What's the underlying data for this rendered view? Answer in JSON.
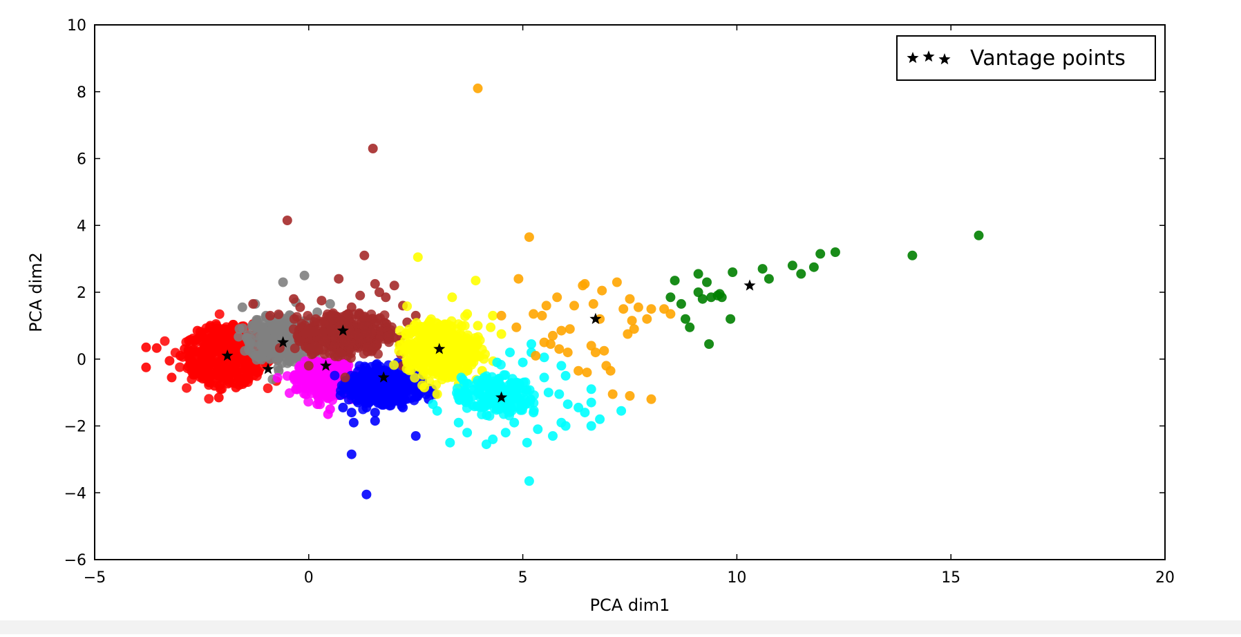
{
  "chart_data": {
    "type": "scatter",
    "title": "",
    "xlabel": "PCA dim1",
    "ylabel": "PCA dim2",
    "xlim": [
      -5,
      20
    ],
    "ylim": [
      -6,
      10
    ],
    "xticks": [
      {
        "value": -5,
        "label": "−5"
      },
      {
        "value": 0,
        "label": "0"
      },
      {
        "value": 5,
        "label": "5"
      },
      {
        "value": 10,
        "label": "10"
      },
      {
        "value": 15,
        "label": "15"
      },
      {
        "value": 20,
        "label": "20"
      }
    ],
    "yticks": [
      {
        "value": -6,
        "label": "−6"
      },
      {
        "value": -4,
        "label": "−4"
      },
      {
        "value": -2,
        "label": "−2"
      },
      {
        "value": 0,
        "label": "0"
      },
      {
        "value": 2,
        "label": "2"
      },
      {
        "value": 4,
        "label": "4"
      },
      {
        "value": 6,
        "label": "6"
      },
      {
        "value": 8,
        "label": "8"
      },
      {
        "value": 10,
        "label": "10"
      }
    ],
    "grid": false,
    "legend": {
      "position": "top-right",
      "entries": [
        "Vantage points"
      ]
    },
    "clusters": [
      {
        "color": "#ff0000",
        "points": [
          [
            -3.8,
            -0.25
          ],
          [
            -3.8,
            0.35
          ],
          [
            -3.55,
            0.33
          ],
          [
            -3.25,
            -0.05
          ],
          [
            -3.2,
            -0.55
          ],
          [
            -3.0,
            0.1
          ],
          [
            -2.8,
            0.55
          ],
          [
            -2.6,
            0.85
          ],
          [
            -2.5,
            -0.4
          ],
          [
            -2.3,
            1.0
          ],
          [
            -2.2,
            -0.8
          ],
          [
            -2.1,
            0.4
          ],
          [
            -1.9,
            -0.2
          ],
          [
            -1.8,
            0.9
          ],
          [
            -1.6,
            0.55
          ],
          [
            -1.5,
            -0.7
          ],
          [
            -1.4,
            0.1
          ],
          [
            -1.3,
            1.05
          ],
          [
            -1.2,
            -0.4
          ],
          [
            -1.05,
            0.3
          ],
          [
            -2.0,
            -0.65
          ],
          [
            -2.7,
            -0.2
          ],
          [
            -1.7,
            -0.85
          ],
          [
            -2.1,
            -1.15
          ],
          [
            -2.4,
            0.15
          ],
          [
            -1.25,
            -0.15
          ],
          [
            -2.9,
            0.3
          ],
          [
            -1.55,
            0.75
          ]
        ],
        "dense": [
          {
            "cx": -1.9,
            "cy": 0.1,
            "rx": 1.05,
            "ry": 0.95,
            "n": 460
          }
        ]
      },
      {
        "color": "#808080",
        "points": [
          [
            -1.55,
            1.55
          ],
          [
            -1.25,
            1.65
          ],
          [
            -1.0,
            1.3
          ],
          [
            -0.6,
            2.3
          ],
          [
            -0.1,
            2.5
          ],
          [
            0.5,
            1.65
          ],
          [
            -0.3,
            1.7
          ],
          [
            -1.3,
            0.9
          ],
          [
            -1.4,
            0.3
          ],
          [
            -0.9,
            0.0
          ],
          [
            -0.7,
            -0.35
          ],
          [
            -0.3,
            0.15
          ],
          [
            0.0,
            1.1
          ],
          [
            0.4,
            0.8
          ],
          [
            -1.2,
            0.5
          ],
          [
            0.2,
            1.4
          ]
        ],
        "dense": [
          {
            "cx": -0.65,
            "cy": 0.6,
            "rx": 0.85,
            "ry": 0.75,
            "n": 340
          }
        ]
      },
      {
        "color": "#ff00ff",
        "points": [
          [
            0.75,
            -0.95
          ],
          [
            0.5,
            -1.5
          ],
          [
            0.2,
            -1.35
          ],
          [
            1.0,
            -1.2
          ],
          [
            -0.3,
            -0.9
          ],
          [
            0.9,
            -0.3
          ],
          [
            -0.2,
            -0.2
          ],
          [
            0.45,
            -1.65
          ],
          [
            1.1,
            -0.6
          ],
          [
            -0.35,
            -0.55
          ]
        ],
        "dense": [
          {
            "cx": 0.4,
            "cy": -0.6,
            "rx": 0.75,
            "ry": 0.6,
            "n": 280
          }
        ]
      },
      {
        "color": "#0000ff",
        "points": [
          [
            1.0,
            -1.6
          ],
          [
            0.8,
            -1.45
          ],
          [
            1.05,
            -1.9
          ],
          [
            1.55,
            -1.6
          ],
          [
            1.55,
            -1.85
          ],
          [
            1.35,
            -1.45
          ],
          [
            1.0,
            -2.85
          ],
          [
            1.35,
            -4.05
          ],
          [
            2.5,
            -2.3
          ],
          [
            2.8,
            -1.2
          ],
          [
            2.95,
            -1.05
          ],
          [
            2.2,
            -1.45
          ],
          [
            1.15,
            -1.3
          ]
        ],
        "dense": [
          {
            "cx": 1.75,
            "cy": -0.8,
            "rx": 0.95,
            "ry": 0.6,
            "n": 380
          }
        ]
      },
      {
        "color": "#a52a2a",
        "points": [
          [
            1.5,
            6.3
          ],
          [
            -0.5,
            4.15
          ],
          [
            1.3,
            3.1
          ],
          [
            1.65,
            2.0
          ],
          [
            2.0,
            2.2
          ],
          [
            1.55,
            2.25
          ],
          [
            -0.35,
            1.8
          ],
          [
            -1.3,
            1.65
          ],
          [
            0.7,
            2.4
          ],
          [
            1.0,
            1.55
          ],
          [
            1.8,
            1.85
          ],
          [
            2.2,
            1.6
          ],
          [
            -0.9,
            1.3
          ],
          [
            2.5,
            1.3
          ],
          [
            2.3,
            1.1
          ],
          [
            0.3,
            1.75
          ],
          [
            -0.2,
            1.55
          ],
          [
            1.2,
            1.9
          ],
          [
            0.0,
            -0.2
          ],
          [
            2.2,
            -0.2
          ],
          [
            0.85,
            -0.55
          ]
        ],
        "dense": [
          {
            "cx": 0.85,
            "cy": 0.75,
            "rx": 1.15,
            "ry": 0.7,
            "n": 380
          }
        ]
      },
      {
        "color": "#ffff00",
        "points": [
          [
            2.55,
            3.05
          ],
          [
            3.9,
            2.35
          ],
          [
            3.35,
            1.85
          ],
          [
            3.7,
            1.35
          ],
          [
            4.3,
            1.3
          ],
          [
            4.5,
            0.75
          ],
          [
            2.3,
            -0.1
          ],
          [
            2.7,
            -0.85
          ],
          [
            3.0,
            -1.05
          ],
          [
            3.5,
            -0.75
          ],
          [
            4.05,
            -0.35
          ],
          [
            4.25,
            0.95
          ],
          [
            3.95,
            1.0
          ]
        ],
        "dense": [
          {
            "cx": 3.05,
            "cy": 0.3,
            "rx": 0.95,
            "ry": 0.9,
            "n": 380
          }
        ]
      },
      {
        "color": "#00ffff",
        "points": [
          [
            5.0,
            -0.1
          ],
          [
            5.2,
            0.2
          ],
          [
            5.5,
            0.05
          ],
          [
            5.9,
            -0.2
          ],
          [
            6.0,
            -0.5
          ],
          [
            5.6,
            -1.0
          ],
          [
            6.05,
            -1.35
          ],
          [
            5.9,
            -1.9
          ],
          [
            5.35,
            -2.1
          ],
          [
            5.7,
            -2.3
          ],
          [
            5.1,
            -2.5
          ],
          [
            4.8,
            -1.9
          ],
          [
            4.6,
            -2.2
          ],
          [
            4.3,
            -2.4
          ],
          [
            4.15,
            -2.55
          ],
          [
            3.7,
            -2.2
          ],
          [
            3.3,
            -2.5
          ],
          [
            3.5,
            -1.9
          ],
          [
            3.0,
            -1.55
          ],
          [
            2.9,
            -1.35
          ],
          [
            6.6,
            -0.9
          ],
          [
            6.45,
            -1.6
          ],
          [
            6.6,
            -1.3
          ],
          [
            6.6,
            -2.0
          ],
          [
            6.8,
            -1.8
          ],
          [
            7.3,
            -1.55
          ],
          [
            6.0,
            -2.0
          ],
          [
            5.15,
            -3.65
          ],
          [
            5.2,
            0.45
          ],
          [
            4.7,
            0.2
          ],
          [
            4.4,
            -0.1
          ],
          [
            6.3,
            -1.45
          ],
          [
            5.25,
            -1.6
          ],
          [
            4.45,
            -1.5
          ],
          [
            3.85,
            -1.1
          ],
          [
            4.85,
            -0.7
          ],
          [
            5.5,
            -0.55
          ],
          [
            4.0,
            -0.8
          ],
          [
            5.85,
            -1.05
          ]
        ],
        "dense": [
          {
            "cx": 4.35,
            "cy": -1.1,
            "rx": 0.95,
            "ry": 0.65,
            "n": 190
          }
        ]
      },
      {
        "color": "#ffa500",
        "points": [
          [
            3.95,
            8.1
          ],
          [
            5.15,
            3.65
          ],
          [
            4.9,
            2.4
          ],
          [
            5.45,
            1.3
          ],
          [
            5.55,
            1.6
          ],
          [
            5.8,
            1.85
          ],
          [
            6.2,
            1.6
          ],
          [
            6.4,
            2.2
          ],
          [
            6.65,
            1.65
          ],
          [
            6.8,
            1.2
          ],
          [
            7.2,
            2.3
          ],
          [
            7.35,
            1.5
          ],
          [
            7.5,
            1.8
          ],
          [
            7.7,
            1.55
          ],
          [
            7.9,
            1.2
          ],
          [
            8.0,
            1.5
          ],
          [
            8.3,
            1.5
          ],
          [
            8.45,
            1.35
          ],
          [
            6.1,
            0.9
          ],
          [
            5.9,
            0.85
          ],
          [
            5.7,
            0.7
          ],
          [
            5.5,
            0.5
          ],
          [
            5.3,
            0.1
          ],
          [
            5.85,
            0.3
          ],
          [
            6.05,
            0.2
          ],
          [
            6.3,
            -0.35
          ],
          [
            6.5,
            -0.4
          ],
          [
            6.6,
            0.4
          ],
          [
            6.7,
            0.2
          ],
          [
            6.9,
            0.25
          ],
          [
            6.95,
            -0.2
          ],
          [
            7.05,
            -0.35
          ],
          [
            7.1,
            -1.05
          ],
          [
            7.5,
            -1.1
          ],
          [
            8.0,
            -1.2
          ],
          [
            7.55,
            1.15
          ],
          [
            7.6,
            0.9
          ],
          [
            7.45,
            0.75
          ],
          [
            6.85,
            2.05
          ],
          [
            4.85,
            0.95
          ],
          [
            5.25,
            1.35
          ],
          [
            6.45,
            2.25
          ],
          [
            4.5,
            1.3
          ],
          [
            5.65,
            0.45
          ]
        ]
      },
      {
        "color": "#008000",
        "points": [
          [
            8.45,
            1.85
          ],
          [
            8.55,
            2.35
          ],
          [
            8.7,
            1.65
          ],
          [
            8.8,
            1.2
          ],
          [
            8.9,
            0.95
          ],
          [
            9.1,
            2.55
          ],
          [
            9.1,
            2.0
          ],
          [
            9.2,
            1.8
          ],
          [
            9.3,
            2.3
          ],
          [
            9.4,
            1.85
          ],
          [
            9.6,
            1.95
          ],
          [
            9.65,
            1.85
          ],
          [
            9.85,
            1.2
          ],
          [
            9.9,
            2.6
          ],
          [
            10.6,
            2.7
          ],
          [
            10.75,
            2.4
          ],
          [
            11.3,
            2.8
          ],
          [
            11.5,
            2.55
          ],
          [
            11.8,
            2.75
          ],
          [
            11.95,
            3.15
          ],
          [
            12.3,
            3.2
          ],
          [
            14.1,
            3.1
          ],
          [
            15.65,
            3.7
          ],
          [
            9.35,
            0.45
          ],
          [
            9.55,
            1.9
          ]
        ]
      }
    ],
    "vantage_points": {
      "marker": "star",
      "color": "#000000",
      "points": [
        [
          -1.9,
          0.1
        ],
        [
          -0.95,
          -0.3
        ],
        [
          -0.6,
          0.5
        ],
        [
          0.4,
          -0.2
        ],
        [
          0.8,
          0.85
        ],
        [
          1.75,
          -0.55
        ],
        [
          3.05,
          0.3
        ],
        [
          4.5,
          -1.15
        ],
        [
          6.7,
          1.2
        ],
        [
          10.3,
          2.2
        ]
      ]
    }
  }
}
